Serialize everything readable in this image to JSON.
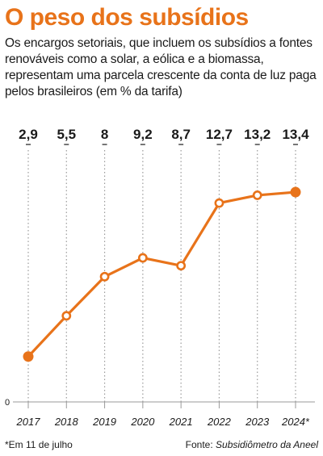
{
  "header": {
    "title": "O peso dos subsídios",
    "subtitle": "Os encargos setoriais, que incluem os subsídios a fontes renováveis como a solar, a eólica e a biomassa, representam uma parcela crescente da conta de luz paga pelos brasileiros (em % da tarifa)"
  },
  "footer": {
    "footnote": "*Em 11 de julho",
    "source_prefix": "Fonte: ",
    "source_name": "Subsidiômetro da Aneel"
  },
  "colors": {
    "accent": "#e8731a",
    "text": "#1a1a1a",
    "grid": "#9a9a9a"
  },
  "chart_data": {
    "type": "line",
    "categories": [
      "2017",
      "2018",
      "2019",
      "2020",
      "2021",
      "2022",
      "2023",
      "2024*"
    ],
    "values": [
      2.9,
      5.5,
      8,
      9.2,
      8.7,
      12.7,
      13.2,
      13.4
    ],
    "value_labels": [
      "2,9",
      "5,5",
      "8",
      "9,2",
      "8,7",
      "12,7",
      "13,2",
      "13,4"
    ],
    "y_baseline_label": "0",
    "ylim": [
      0,
      14
    ],
    "grid": "vertical dotted lines",
    "title": "",
    "xlabel": "",
    "ylabel": ""
  }
}
